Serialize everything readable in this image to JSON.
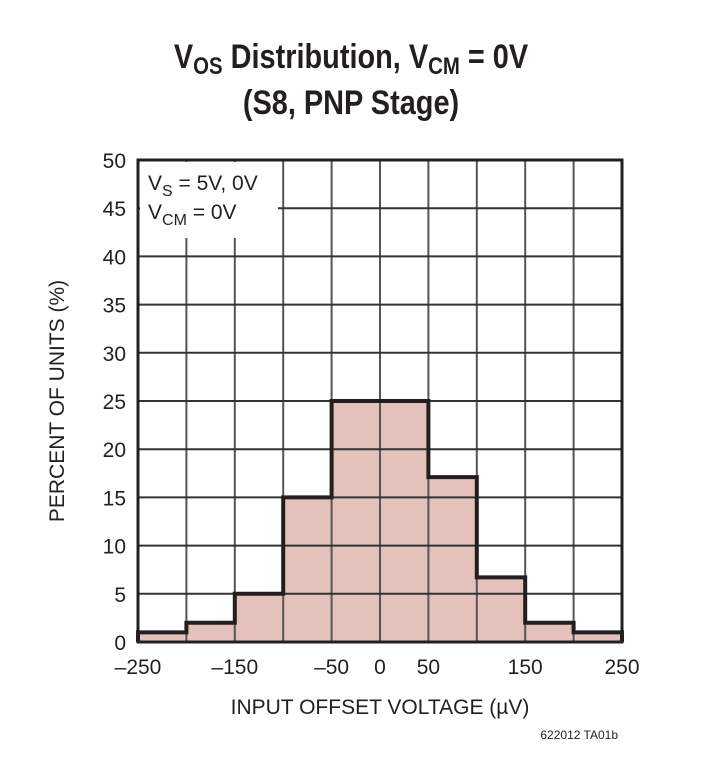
{
  "chart_data": {
    "type": "bar",
    "title_line1": {
      "v": "V",
      "v_sub": "OS",
      "mid": " Distribution, V",
      "cm_sub": "CM",
      "end": " = 0V"
    },
    "title_line2": "(S8, PNP Stage)",
    "xlabel": "INPUT OFFSET VOLTAGE (µV)",
    "ylabel": "PERCENT OF UNITS (%)",
    "xlim": [
      -250,
      250
    ],
    "ylim": [
      0,
      50
    ],
    "xticks": [
      -250,
      -150,
      -50,
      0,
      50,
      150,
      250
    ],
    "xtick_labels": [
      "–250",
      "–150",
      "–50",
      "0",
      "50",
      "150",
      "250"
    ],
    "yticks": [
      0,
      5,
      10,
      15,
      20,
      25,
      30,
      35,
      40,
      45,
      50
    ],
    "grid": true,
    "bin_edges": [
      -250,
      -200,
      -150,
      -100,
      -50,
      0,
      50,
      100,
      150,
      200,
      250
    ],
    "values": [
      1,
      2,
      5,
      15,
      25,
      25,
      17.1,
      6.7,
      2,
      1
    ],
    "annotation": {
      "line1": "V",
      "line1_sub": "S",
      "line1_end": " = 5V, 0V",
      "line2": "V",
      "line2_sub": "CM",
      "line2_end": " = 0V"
    },
    "fill_color": "#e5c1bb",
    "outline_color": "#231f20"
  },
  "footer": "622012 TA01b"
}
